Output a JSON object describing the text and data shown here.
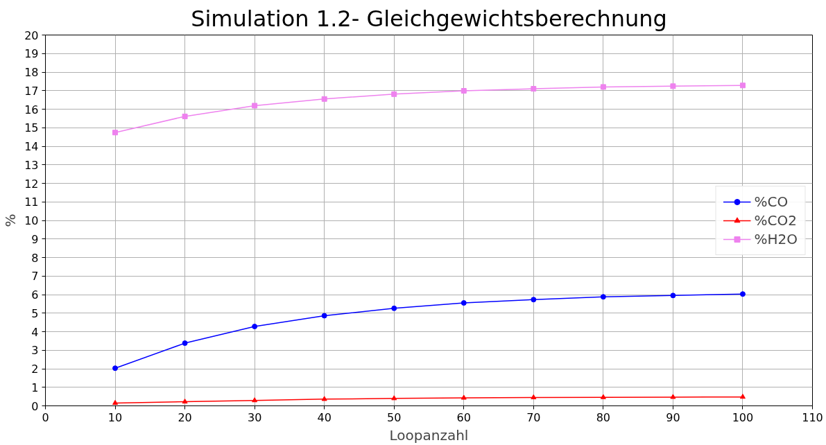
{
  "chart_data": {
    "type": "line",
    "title": "Simulation 1.2- Gleichgewichtsberechnung",
    "xlabel": "Loopanzahl",
    "ylabel": "%",
    "x": [
      10,
      20,
      30,
      40,
      50,
      60,
      70,
      80,
      90,
      100
    ],
    "series": [
      {
        "name": "%CO",
        "color": "#0000ff",
        "marker": "circle",
        "values": [
          2.03,
          3.38,
          4.28,
          4.86,
          5.26,
          5.55,
          5.73,
          5.88,
          5.95,
          6.03
        ]
      },
      {
        "name": "%CO2",
        "color": "#ff0000",
        "marker": "triangle",
        "values": [
          0.15,
          0.22,
          0.29,
          0.36,
          0.4,
          0.43,
          0.45,
          0.46,
          0.47,
          0.48
        ]
      },
      {
        "name": "%H2O",
        "color": "#ee82ee",
        "marker": "square",
        "values": [
          14.74,
          15.61,
          16.19,
          16.55,
          16.81,
          16.99,
          17.1,
          17.2,
          17.24,
          17.28
        ]
      }
    ],
    "xlim": [
      0,
      110
    ],
    "xticks": [
      0,
      10,
      20,
      30,
      40,
      50,
      60,
      70,
      80,
      90,
      100,
      110
    ],
    "ylim": [
      0,
      20
    ],
    "yticks": [
      0,
      1,
      2,
      3,
      4,
      5,
      6,
      7,
      8,
      9,
      10,
      11,
      12,
      13,
      14,
      15,
      16,
      17,
      18,
      19,
      20
    ],
    "grid": true,
    "legend": "right",
    "line_style": "solid"
  }
}
